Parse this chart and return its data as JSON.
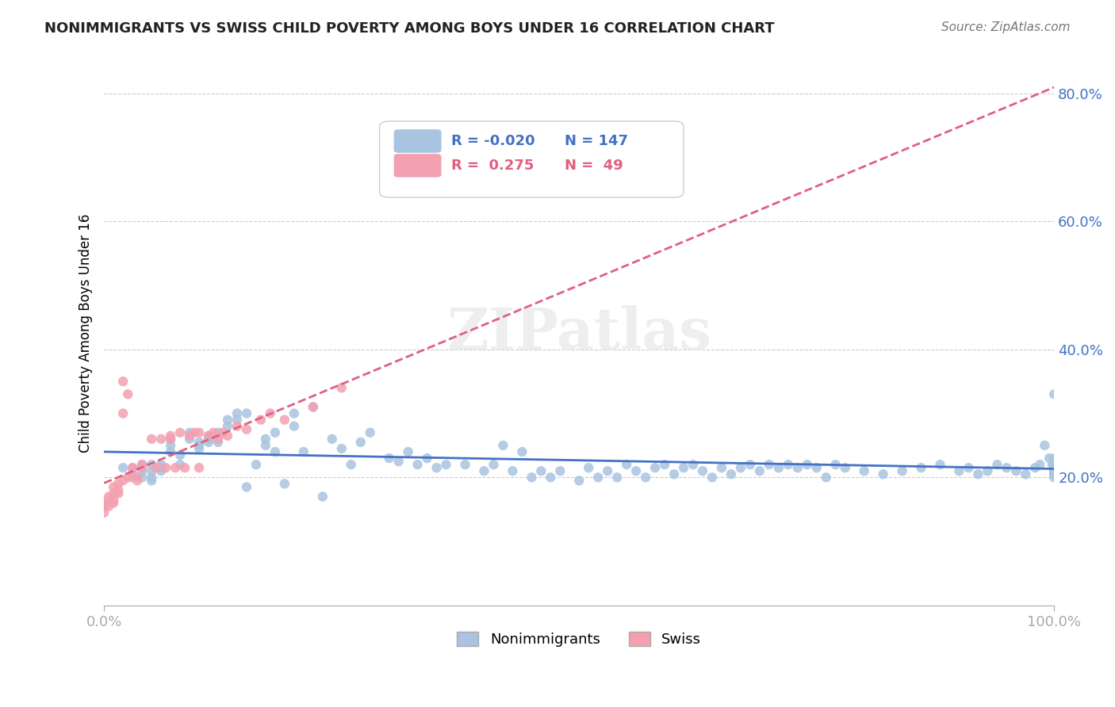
{
  "title": "NONIMMIGRANTS VS SWISS CHILD POVERTY AMONG BOYS UNDER 16 CORRELATION CHART",
  "source": "Source: ZipAtlas.com",
  "xlabel": "",
  "ylabel": "Child Poverty Among Boys Under 16",
  "watermark": "ZIPatlas",
  "legend_nonimm": "Nonimmigrants",
  "legend_swiss": "Swiss",
  "R_nonimm": -0.02,
  "N_nonimm": 147,
  "R_swiss": 0.275,
  "N_swiss": 49,
  "nonimm_color": "#a8c4e0",
  "swiss_color": "#f4a0b0",
  "nonimm_line_color": "#4472c4",
  "swiss_line_color": "#e06080",
  "axis_label_color": "#4472c4",
  "title_color": "#222222",
  "source_color": "#555555",
  "xlim": [
    0,
    1
  ],
  "ylim": [
    0,
    0.85
  ],
  "yticks": [
    0.2,
    0.4,
    0.6,
    0.8
  ],
  "ytick_labels": [
    "20.0%",
    "40.0%",
    "60.0%",
    "80.0%"
  ],
  "xtick_labels": [
    "0.0%",
    "100.0%"
  ],
  "nonimm_x": [
    0.02,
    0.03,
    0.03,
    0.04,
    0.04,
    0.04,
    0.05,
    0.05,
    0.05,
    0.05,
    0.06,
    0.06,
    0.06,
    0.07,
    0.07,
    0.07,
    0.08,
    0.08,
    0.09,
    0.09,
    0.1,
    0.1,
    0.1,
    0.11,
    0.11,
    0.11,
    0.12,
    0.12,
    0.13,
    0.13,
    0.14,
    0.14,
    0.15,
    0.15,
    0.16,
    0.17,
    0.17,
    0.18,
    0.18,
    0.19,
    0.2,
    0.2,
    0.21,
    0.22,
    0.23,
    0.24,
    0.25,
    0.26,
    0.27,
    0.28,
    0.3,
    0.31,
    0.32,
    0.33,
    0.34,
    0.35,
    0.36,
    0.38,
    0.4,
    0.41,
    0.42,
    0.43,
    0.44,
    0.45,
    0.46,
    0.47,
    0.48,
    0.5,
    0.51,
    0.52,
    0.53,
    0.54,
    0.55,
    0.56,
    0.57,
    0.58,
    0.59,
    0.6,
    0.61,
    0.62,
    0.63,
    0.64,
    0.65,
    0.66,
    0.67,
    0.68,
    0.69,
    0.7,
    0.71,
    0.72,
    0.73,
    0.74,
    0.75,
    0.76,
    0.77,
    0.78,
    0.8,
    0.82,
    0.84,
    0.86,
    0.88,
    0.9,
    0.91,
    0.92,
    0.93,
    0.94,
    0.95,
    0.96,
    0.97,
    0.98,
    0.985,
    0.99,
    0.995,
    0.998,
    1.0,
    1.0,
    1.0,
    1.0,
    1.0,
    1.0,
    1.0,
    1.0,
    1.0,
    1.0,
    1.0,
    1.0,
    1.0,
    1.0,
    1.0,
    1.0,
    1.0,
    1.0,
    1.0,
    1.0,
    1.0,
    1.0,
    1.0,
    1.0,
    1.0,
    1.0,
    1.0,
    1.0,
    1.0,
    1.0,
    1.0,
    1.0,
    1.0
  ],
  "nonimm_y": [
    0.215,
    0.205,
    0.215,
    0.22,
    0.21,
    0.2,
    0.22,
    0.21,
    0.195,
    0.2,
    0.215,
    0.21,
    0.22,
    0.26,
    0.25,
    0.24,
    0.235,
    0.22,
    0.27,
    0.26,
    0.245,
    0.25,
    0.255,
    0.26,
    0.255,
    0.265,
    0.255,
    0.27,
    0.29,
    0.28,
    0.29,
    0.3,
    0.185,
    0.3,
    0.22,
    0.25,
    0.26,
    0.24,
    0.27,
    0.19,
    0.3,
    0.28,
    0.24,
    0.31,
    0.17,
    0.26,
    0.245,
    0.22,
    0.255,
    0.27,
    0.23,
    0.225,
    0.24,
    0.22,
    0.23,
    0.215,
    0.22,
    0.22,
    0.21,
    0.22,
    0.25,
    0.21,
    0.24,
    0.2,
    0.21,
    0.2,
    0.21,
    0.195,
    0.215,
    0.2,
    0.21,
    0.2,
    0.22,
    0.21,
    0.2,
    0.215,
    0.22,
    0.205,
    0.215,
    0.22,
    0.21,
    0.2,
    0.215,
    0.205,
    0.215,
    0.22,
    0.21,
    0.22,
    0.215,
    0.22,
    0.215,
    0.22,
    0.215,
    0.2,
    0.22,
    0.215,
    0.21,
    0.205,
    0.21,
    0.215,
    0.22,
    0.21,
    0.215,
    0.205,
    0.21,
    0.22,
    0.215,
    0.21,
    0.205,
    0.215,
    0.22,
    0.25,
    0.23,
    0.22,
    0.21,
    0.215,
    0.22,
    0.205,
    0.215,
    0.22,
    0.21,
    0.22,
    0.215,
    0.21,
    0.23,
    0.22,
    0.215,
    0.22,
    0.21,
    0.215,
    0.22,
    0.2,
    0.215,
    0.21,
    0.22,
    0.215,
    0.205,
    0.21,
    0.215,
    0.215,
    0.22,
    0.21,
    0.33,
    0.22,
    0.21,
    0.215,
    0.22
  ],
  "swiss_x": [
    0.0,
    0.0,
    0.0,
    0.005,
    0.005,
    0.005,
    0.01,
    0.01,
    0.01,
    0.01,
    0.015,
    0.015,
    0.015,
    0.02,
    0.02,
    0.02,
    0.025,
    0.025,
    0.03,
    0.03,
    0.035,
    0.035,
    0.04,
    0.04,
    0.05,
    0.055,
    0.06,
    0.065,
    0.07,
    0.07,
    0.075,
    0.08,
    0.085,
    0.09,
    0.095,
    0.1,
    0.1,
    0.11,
    0.115,
    0.12,
    0.125,
    0.13,
    0.14,
    0.15,
    0.165,
    0.175,
    0.19,
    0.22,
    0.25
  ],
  "swiss_y": [
    0.145,
    0.155,
    0.16,
    0.17,
    0.155,
    0.165,
    0.16,
    0.165,
    0.175,
    0.185,
    0.175,
    0.18,
    0.19,
    0.3,
    0.35,
    0.195,
    0.33,
    0.2,
    0.2,
    0.215,
    0.195,
    0.2,
    0.215,
    0.22,
    0.26,
    0.215,
    0.26,
    0.215,
    0.26,
    0.265,
    0.215,
    0.27,
    0.215,
    0.265,
    0.27,
    0.215,
    0.27,
    0.265,
    0.27,
    0.26,
    0.27,
    0.265,
    0.28,
    0.275,
    0.29,
    0.3,
    0.29,
    0.31,
    0.34
  ]
}
